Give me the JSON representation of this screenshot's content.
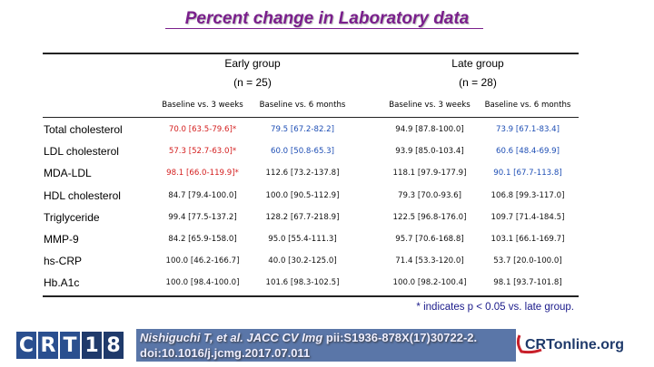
{
  "title": "Percent change in Laboratory data",
  "groups": [
    {
      "label": "Early group",
      "n": "(n = 25)"
    },
    {
      "label": "Late group",
      "n": "(n = 28)"
    }
  ],
  "subheaders": [
    "Baseline vs. 3 weeks",
    "Baseline vs. 6 months",
    "Baseline vs. 3 weeks",
    "Baseline vs. 6 months"
  ],
  "rows": [
    {
      "label": "Total cholesterol",
      "cells": [
        {
          "text": "70.0 [63.5-79.6]*",
          "color": "red"
        },
        {
          "text": "79.5 [67.2-82.2]",
          "color": "blue"
        },
        {
          "text": "94.9 [87.8-100.0]",
          "color": "black"
        },
        {
          "text": "73.9 [67.1-83.4]",
          "color": "blue"
        }
      ]
    },
    {
      "label": "LDL cholesterol",
      "cells": [
        {
          "text": "57.3 [52.7-63.0]*",
          "color": "red"
        },
        {
          "text": "60.0 [50.8-65.3]",
          "color": "blue"
        },
        {
          "text": "93.9 [85.0-103.4]",
          "color": "black"
        },
        {
          "text": "60.6 [48.4-69.9]",
          "color": "blue"
        }
      ]
    },
    {
      "label": "MDA-LDL",
      "cells": [
        {
          "text": "98.1 [66.0-119.9]*",
          "color": "red"
        },
        {
          "text": "112.6 [73.2-137.8]",
          "color": "black"
        },
        {
          "text": "118.1 [97.9-177.9]",
          "color": "black"
        },
        {
          "text": "90.1 [67.7-113.8]",
          "color": "blue"
        }
      ]
    },
    {
      "label": "HDL cholesterol",
      "cells": [
        {
          "text": "84.7 [79.4-100.0]",
          "color": "black"
        },
        {
          "text": "100.0 [90.5-112.9]",
          "color": "black"
        },
        {
          "text": "79.3 [70.0-93.6]",
          "color": "black"
        },
        {
          "text": "106.8 [99.3-117.0]",
          "color": "black"
        }
      ]
    },
    {
      "label": "Triglyceride",
      "cells": [
        {
          "text": "99.4 [77.5-137.2]",
          "color": "black"
        },
        {
          "text": "128.2 [67.7-218.9]",
          "color": "black"
        },
        {
          "text": "122.5 [96.8-176.0]",
          "color": "black"
        },
        {
          "text": "109.7 [71.4-184.5]",
          "color": "black"
        }
      ]
    },
    {
      "label": "MMP-9",
      "cells": [
        {
          "text": "84.2 [65.9-158.0]",
          "color": "black"
        },
        {
          "text": "95.0 [55.4-111.3]",
          "color": "black"
        },
        {
          "text": "95.7 [70.6-168.8]",
          "color": "black"
        },
        {
          "text": "103.1 [66.1-169.7]",
          "color": "black"
        }
      ]
    },
    {
      "label": "hs-CRP",
      "cells": [
        {
          "text": "100.0 [46.2-166.7]",
          "color": "black"
        },
        {
          "text": "40.0 [30.2-125.0]",
          "color": "black"
        },
        {
          "text": "71.4 [53.3-120.0]",
          "color": "black"
        },
        {
          "text": "53.7 [20.0-100.0]",
          "color": "black"
        }
      ]
    },
    {
      "label": "Hb.A1c",
      "cells": [
        {
          "text": "100.0 [98.4-100.0]",
          "color": "black"
        },
        {
          "text": "101.6 [98.3-102.5]",
          "color": "black"
        },
        {
          "text": "100.0 [98.2-100.4]",
          "color": "black"
        },
        {
          "text": "98.1 [93.7-101.8]",
          "color": "black"
        }
      ]
    }
  ],
  "footnote": "* indicates p < 0.05 vs. late group.",
  "citation": {
    "authors": "Nishiguchi T, et al.",
    "journal": "JACC CV Img",
    "rest": " pii:S1936-878X(17)30722-2.",
    "doi": "doi:10.1016/j.jcmg.2017.07.011"
  },
  "logo_left": [
    "C",
    "R",
    "T",
    "1",
    "8"
  ],
  "logo_right": "CRTonline.org",
  "colors": {
    "red": "#d42020",
    "blue": "#1f4fb5",
    "black": "#111111",
    "title": "#7a1f8c"
  }
}
